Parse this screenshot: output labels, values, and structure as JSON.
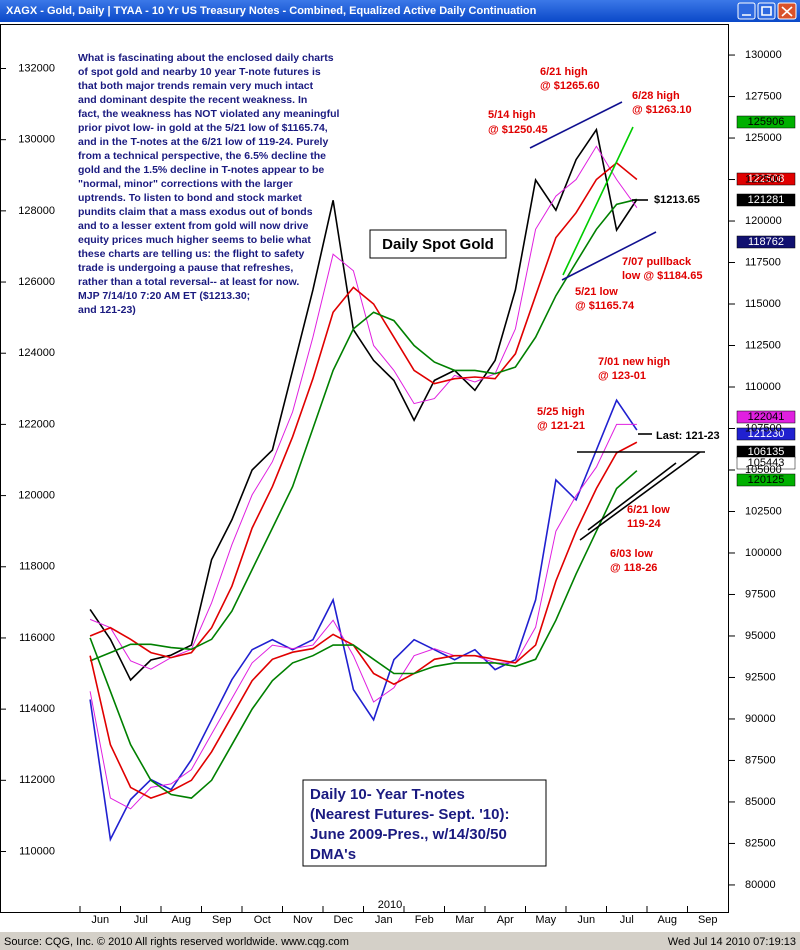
{
  "chart_data": {
    "type": "line",
    "window_title": "XAGX - Gold, Daily   |   TYAA - 10 Yr US Treasury Notes - Combined, Equalized Active Daily Continuation",
    "source": "Source: CQG, Inc. © 2010 All rights reserved worldwide. www.cqg.com",
    "timestamp": "Wed Jul 14 2010 07:19:13",
    "x_year_label": "2010",
    "categories": [
      "Jun",
      null,
      "Jul",
      null,
      "Aug",
      null,
      "Sep",
      null,
      "Oct",
      null,
      "Nov",
      null,
      "Dec",
      null,
      "Jan",
      null,
      "Feb",
      null,
      "Mar",
      null,
      "Apr",
      null,
      "May",
      null,
      "Jun",
      null,
      "Jul",
      null,
      "Aug",
      null,
      "Sep",
      null
    ],
    "ylim": [
      108300,
      133250
    ],
    "yticks": [
      110000,
      112000,
      114000,
      116000,
      118000,
      120000,
      122000,
      124000,
      126000,
      128000,
      130000,
      132000
    ],
    "y2lim": [
      78370,
      131870
    ],
    "y2ticks": [
      80000,
      82500,
      85000,
      87500,
      90000,
      92500,
      95000,
      97500,
      100000,
      102500,
      105000,
      107500,
      110000,
      112500,
      115000,
      117500,
      120000,
      122500,
      125000,
      127500,
      130000
    ],
    "series": [
      {
        "name": "XAGX",
        "axis": "y2",
        "color": "#000000",
        "width": 1.6,
        "values": [
          96600,
          94800,
          92350,
          93550,
          93850,
          94450,
          99600,
          102000,
          105000,
          106200,
          111000,
          115850,
          121250,
          113450,
          111600,
          110400,
          108000,
          110400,
          111000,
          109800,
          111600,
          115850,
          122470,
          120650,
          123700,
          125500,
          119450,
          121300,
          null,
          null,
          null,
          null
        ]
      },
      {
        "name": "XAGX 14",
        "axis": "y2",
        "color": "#e020e0",
        "width": 1,
        "values": [
          96000,
          95500,
          93500,
          93000,
          93700,
          94200,
          97000,
          100500,
          103500,
          105500,
          108500,
          113000,
          118000,
          117000,
          112500,
          111000,
          109000,
          109300,
          110700,
          110300,
          110800,
          113500,
          119500,
          121500,
          122500,
          124500,
          122500,
          120800,
          null,
          null,
          null,
          null
        ]
      },
      {
        "name": "XAGX 30",
        "axis": "y2",
        "color": "#e00000",
        "width": 1.6,
        "values": [
          95000,
          95500,
          94800,
          94000,
          93700,
          94000,
          95500,
          98000,
          101500,
          104000,
          107000,
          110500,
          114500,
          116000,
          115000,
          113000,
          111000,
          110200,
          110500,
          110600,
          110500,
          112000,
          115500,
          119000,
          120500,
          122500,
          123500,
          122500,
          null,
          null,
          null,
          null
        ]
      },
      {
        "name": "XAGX 50",
        "axis": "y2",
        "color": "#008000",
        "width": 1.6,
        "values": [
          93500,
          94000,
          94500,
          94500,
          94300,
          94200,
          94800,
          96500,
          99000,
          101500,
          104000,
          107500,
          111000,
          113500,
          114500,
          114000,
          112500,
          111500,
          111000,
          111000,
          110800,
          111200,
          113000,
          115500,
          117500,
          119500,
          121000,
          121300,
          null,
          null,
          null,
          null
        ]
      },
      {
        "name": "TYAA",
        "axis": "y",
        "color": "#2020d0",
        "width": 1.6,
        "values": [
          114270,
          110340,
          111460,
          112020,
          111740,
          112580,
          113700,
          114830,
          115670,
          115950,
          115670,
          115950,
          117070,
          114550,
          113700,
          115390,
          115950,
          115670,
          115390,
          115670,
          115110,
          115390,
          117070,
          120440,
          119880,
          121280,
          122680,
          121840,
          null,
          null,
          null,
          null
        ]
      },
      {
        "name": "TYAA 14",
        "axis": "y",
        "color": "#e020e0",
        "width": 1,
        "values": [
          114500,
          111500,
          111200,
          111800,
          111900,
          112300,
          113300,
          114300,
          115300,
          115800,
          115700,
          115800,
          116500,
          115500,
          114200,
          114600,
          115500,
          115700,
          115500,
          115500,
          115300,
          115300,
          116300,
          119000,
          120000,
          120800,
          122000,
          122000,
          null,
          null,
          null,
          null
        ]
      },
      {
        "name": "TYAA 30",
        "axis": "y",
        "color": "#e00000",
        "width": 1.6,
        "values": [
          115500,
          113000,
          111800,
          111500,
          111700,
          112000,
          112800,
          113800,
          114800,
          115400,
          115600,
          115700,
          116100,
          115800,
          115000,
          114700,
          115000,
          115400,
          115500,
          115500,
          115400,
          115300,
          115800,
          117600,
          119000,
          120200,
          121200,
          121500,
          null,
          null,
          null,
          null
        ]
      },
      {
        "name": "TYAA 50",
        "axis": "y",
        "color": "#008000",
        "width": 1.6,
        "values": [
          116000,
          114500,
          113000,
          112000,
          111600,
          111500,
          112000,
          113000,
          114000,
          114800,
          115300,
          115500,
          115800,
          115800,
          115400,
          115000,
          115000,
          115200,
          115300,
          115300,
          115300,
          115200,
          115400,
          116500,
          117800,
          119000,
          120200,
          120700,
          null,
          null,
          null,
          null
        ]
      }
    ],
    "price_tags": [
      {
        "label": "125906",
        "color": "#00b000",
        "text_color": "#000000"
      },
      {
        "label": "122508",
        "color": "#e00000",
        "text_color": "#ffffff"
      },
      {
        "label": "121281",
        "color": "#000000",
        "text_color": "#ffffff"
      },
      {
        "label": "118762",
        "color": "#101070",
        "text_color": "#ffffff"
      },
      {
        "label": "122041",
        "color": "#e020e0",
        "text_color": "#000000"
      },
      {
        "label": "121230",
        "color": "#2020d0",
        "text_color": "#ffffff"
      },
      {
        "label": "106135",
        "color": "#000000",
        "text_color": "#ffffff"
      },
      {
        "label": "105443",
        "color": "#ffffff",
        "text_color": "#000000"
      },
      {
        "label": "120125",
        "color": "#00b000",
        "text_color": "#000000"
      }
    ],
    "annotations": [
      "6/21 high",
      "@ $1265.60",
      "6/28 high",
      "@ $1263.10",
      "5/14 high",
      "@ $1250.45",
      "$1213.65",
      "7/07 pullback",
      "low @ $1184.65",
      "5/21 low",
      "@ $1165.74",
      "7/01 new high",
      "@ 123-01",
      "5/25 high",
      "@ 121-21",
      "Last: 121-23",
      "6/21 low",
      "119-24",
      "6/03 low",
      "@ 118-26"
    ],
    "commentary": [
      "What is fascinating about the enclosed daily charts",
      "of spot gold and nearby 10 year T-note futures is",
      "that both major trends remain very much intact",
      "and dominant despite the recent weakness.  In",
      "fact, the weakness has NOT violated any meaningful",
      "prior pivot low-  in gold at the 5/21 low of $1165.74,",
      "and in the T-notes at the 6/21 low of 119-24.  Purely",
      "from a technical perspective, the 6.5% decline the",
      "gold and the 1.5% decline in T-notes appear to be",
      "\"normal, minor\" corrections with the larger",
      "uptrends.  To listen to bond and stock market",
      "pundits claim that a mass exodus out of bonds",
      "and to a lesser extent from gold will now drive",
      "equity prices much higher seems to belie what",
      "these charts are telling us: the flight to safety",
      "trade is undergoing a pause that refreshes,",
      "rather than a total reversal-- at least for now.",
      "MJP 7/14/10 7:20 AM ET  ($1213.30;",
      "and 121-23)"
    ],
    "gold_label": "Daily Spot Gold",
    "tnote_label": [
      "Daily 10- Year T-notes",
      "(Nearest Futures- Sept. '10):",
      "June 2009-Pres., w/14/30/50",
      "DMA's"
    ]
  }
}
